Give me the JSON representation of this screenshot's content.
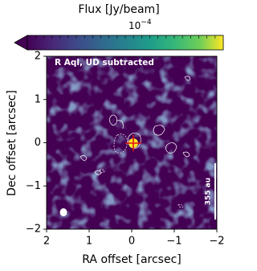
{
  "chart_data": {
    "type": "image",
    "colorbar_label": "Flux [Jy/beam]",
    "colorbar_exponent": {
      "base": "10",
      "power": "−4"
    },
    "colormap": "viridis",
    "annotation": "R Aql, UD subtracted",
    "scale_bar_label": "355 au",
    "xlabel": "RA offset [arcsec]",
    "ylabel": "Dec offset [arcsec]",
    "xlim": [
      2,
      -2
    ],
    "ylim": [
      -2,
      2
    ],
    "xticks": [
      2,
      1,
      0,
      {
        "value": -1,
        "label": "−1"
      },
      {
        "value": -2,
        "label": "−2"
      }
    ],
    "yticks": [
      {
        "value": -2,
        "label": "−2"
      },
      {
        "value": -1,
        "label": "−1"
      },
      0,
      1,
      2
    ]
  }
}
